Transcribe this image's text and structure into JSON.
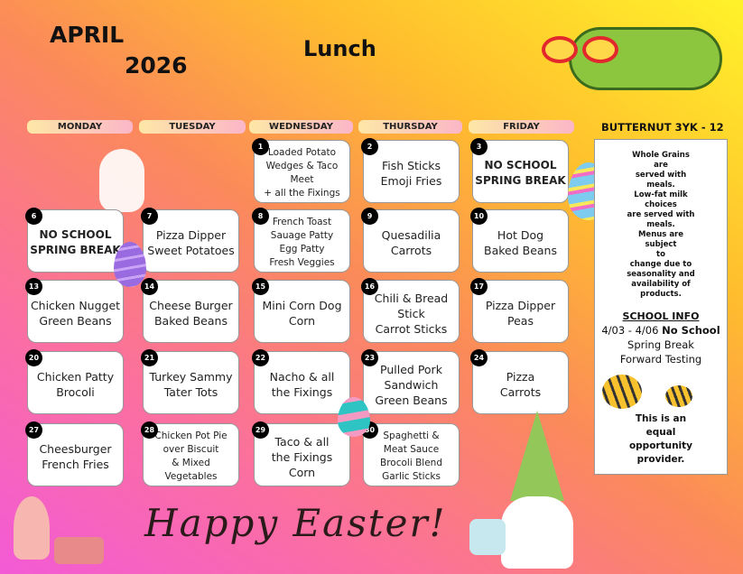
{
  "header": {
    "month": "APRIL",
    "year": "2026",
    "meal": "Lunch",
    "school": "BUTTERNUT 3YK - 12"
  },
  "days": [
    "MONDAY",
    "TUESDAY",
    "WEDNESDAY",
    "THURSDAY",
    "FRIDAY"
  ],
  "cells": [
    {
      "row": 0,
      "col": 2,
      "day": "1",
      "menu": "Loaded Potato\nWedges & Taco Meet\n+ all the Fixings",
      "style": "small"
    },
    {
      "row": 0,
      "col": 3,
      "day": "2",
      "menu": "Fish Sticks\nEmoji Fries"
    },
    {
      "row": 0,
      "col": 4,
      "day": "3",
      "menu": "NO SCHOOL\nSPRING BREAK",
      "style": "bold"
    },
    {
      "row": 1,
      "col": 0,
      "day": "6",
      "menu": "NO SCHOOL\nSPRING BREAK",
      "style": "bold"
    },
    {
      "row": 1,
      "col": 1,
      "day": "7",
      "menu": "Pizza Dipper\nSweet Potatoes"
    },
    {
      "row": 1,
      "col": 2,
      "day": "8",
      "menu": "French Toast\nSauage Patty\nEgg Patty\nFresh Veggies",
      "style": "small"
    },
    {
      "row": 1,
      "col": 3,
      "day": "9",
      "menu": "Quesadilia\nCarrots"
    },
    {
      "row": 1,
      "col": 4,
      "day": "10",
      "menu": "Hot Dog\nBaked Beans"
    },
    {
      "row": 2,
      "col": 0,
      "day": "13",
      "menu": "Chicken Nugget\nGreen Beans"
    },
    {
      "row": 2,
      "col": 1,
      "day": "14",
      "menu": "Cheese Burger\nBaked Beans"
    },
    {
      "row": 2,
      "col": 2,
      "day": "15",
      "menu": "Mini Corn Dog\nCorn"
    },
    {
      "row": 2,
      "col": 3,
      "day": "16",
      "menu": "Chili & Bread\nStick\nCarrot Sticks"
    },
    {
      "row": 2,
      "col": 4,
      "day": "17",
      "menu": "Pizza Dipper\nPeas"
    },
    {
      "row": 3,
      "col": 0,
      "day": "20",
      "menu": "Chicken Patty\nBrocoli"
    },
    {
      "row": 3,
      "col": 1,
      "day": "21",
      "menu": "Turkey Sammy\nTater Tots"
    },
    {
      "row": 3,
      "col": 2,
      "day": "22",
      "menu": "Nacho & all\nthe Fixings"
    },
    {
      "row": 3,
      "col": 3,
      "day": "23",
      "menu": "Pulled Pork\nSandwich\nGreen Beans"
    },
    {
      "row": 3,
      "col": 4,
      "day": "24",
      "menu": "Pizza\nCarrots"
    },
    {
      "row": 4,
      "col": 0,
      "day": "27",
      "menu": "Cheesburger\nFrench Fries"
    },
    {
      "row": 4,
      "col": 1,
      "day": "28",
      "menu": "Chicken Pot Pie\nover Biscuit\n& Mixed\nVegetables",
      "style": "small"
    },
    {
      "row": 4,
      "col": 2,
      "day": "29",
      "menu": "Taco & all\nthe Fixings\nCorn"
    },
    {
      "row": 4,
      "col": 3,
      "day": "30",
      "menu": "Spaghetti &\nMeat Sauce\nBrocoli Blend\nGarlic Sticks",
      "style": "small"
    }
  ],
  "sidebar": {
    "nutrition": "Whole Grains\nare\nserved with\nmeals.\nLow-fat milk\nchoices\nare served with\nmeals.\nMenus are\nsubject\nto\nchange due to\nseasonality and\navailability of\nproducts.",
    "info_title": "SCHOOL INFO",
    "info_dates": "4/03 - 4/06 ",
    "info_bold": "No School",
    "info_line2": "Spring Break",
    "info_line3": "Forward Testing",
    "equal": "This is an\nequal\nopportunity\nprovider."
  },
  "footer": {
    "greeting": "Happy Easter!"
  }
}
